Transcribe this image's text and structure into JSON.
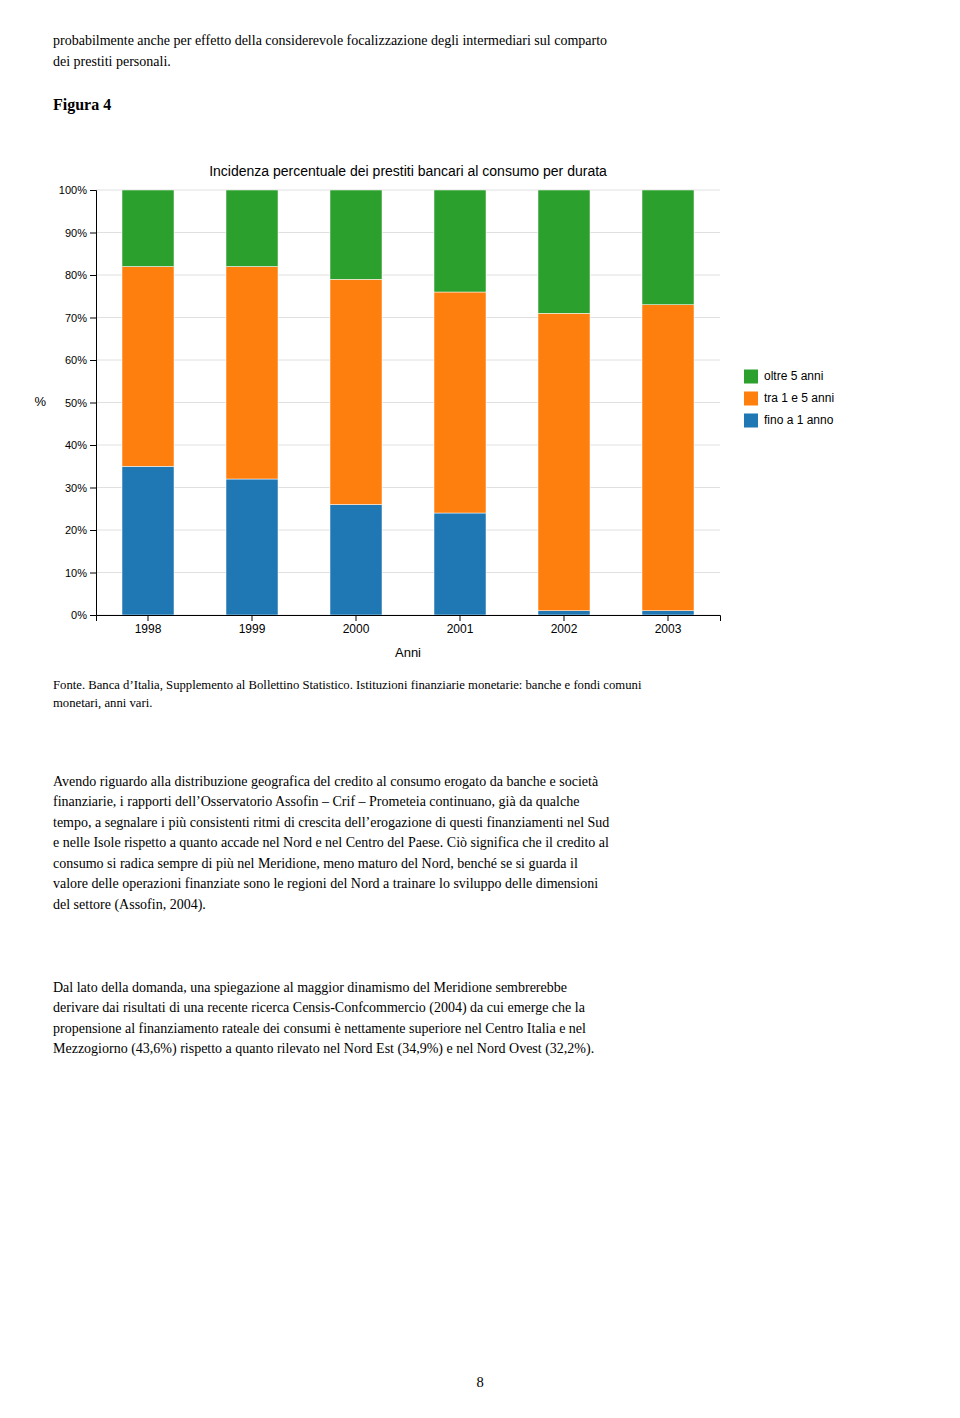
{
  "heading": [
    "probabilmente anche per effetto della considerevole focalizzazione degli intermediari sul comparto",
    "dei prestiti personali."
  ],
  "figure_label": "Figura 4",
  "source": [
    "Fonte. Banca d’Italia, Supplemento al Bollettino Statistico. Istituzioni finanziarie monetarie: banche e fondi comuni",
    "monetari, anni vari."
  ],
  "paragraphs": [
    [
      "Avendo riguardo alla distribuzione geografica del credito al consumo erogato da banche e società",
      "finanziarie, i rapporti dell’Osservatorio Assofin – Crif – Prometeia continuano, già da qualche",
      "tempo, a segnalare i più consistenti ritmi di crescita dell’erogazione di questi finanziamenti nel Sud",
      "e nelle Isole rispetto a quanto accade nel Nord e nel Centro del Paese. Ciò significa che il credito al",
      "consumo si radica sempre di più nel Meridione, meno maturo del Nord, benché se si guarda il",
      "valore delle operazioni finanziate sono le regioni del Nord a trainare lo sviluppo delle dimensioni",
      "del settore (Assofin, 2004)."
    ],
    [
      "Dal lato della domanda, una spiegazione al maggior dinamismo del Meridione sembrerebbe",
      "derivare dai risultati di una recente ricerca Censis-Confcommercio (2004) da cui emerge che la",
      "propensione al finanziamento rateale dei consumi è nettamente superiore nel Centro Italia e nel",
      "Mezzogiorno (43,6%) rispetto a quanto rilevato nel Nord Est (34,9%) e nel Nord Ovest (32,2%)."
    ]
  ],
  "page_number": "8",
  "chart_data": {
    "type": "bar",
    "stacked": true,
    "title": "Incidenza percentuale dei prestiti bancari al consumo per durata",
    "x_label": "Anni",
    "y_label": "%",
    "categories": [
      "1998",
      "1999",
      "2000",
      "2001",
      "2002",
      "2003"
    ],
    "series": [
      {
        "name": "fino a 1 anno",
        "values": [
          35,
          32,
          26,
          24,
          1,
          1
        ]
      },
      {
        "name": "tra 1 e 5 anni",
        "values": [
          47,
          50,
          53,
          52,
          70,
          72
        ]
      },
      {
        "name": "oltre 5 anni",
        "values": [
          18,
          18,
          21,
          24,
          29,
          27
        ]
      }
    ],
    "ylim": [
      0,
      100
    ],
    "yticks": [
      {
        "value": 0,
        "label": "0%"
      },
      {
        "value": 10,
        "label": "10%"
      },
      {
        "value": 20,
        "label": "20%"
      },
      {
        "value": 30,
        "label": "30%"
      },
      {
        "value": 40,
        "label": "40%"
      },
      {
        "value": 50,
        "label": "50%"
      },
      {
        "value": 60,
        "label": "60%"
      },
      {
        "value": 70,
        "label": "70%"
      },
      {
        "value": 80,
        "label": "80%"
      },
      {
        "value": 90,
        "label": "90%"
      },
      {
        "value": 100,
        "label": "100%"
      }
    ],
    "grid": true,
    "legend": "right"
  }
}
